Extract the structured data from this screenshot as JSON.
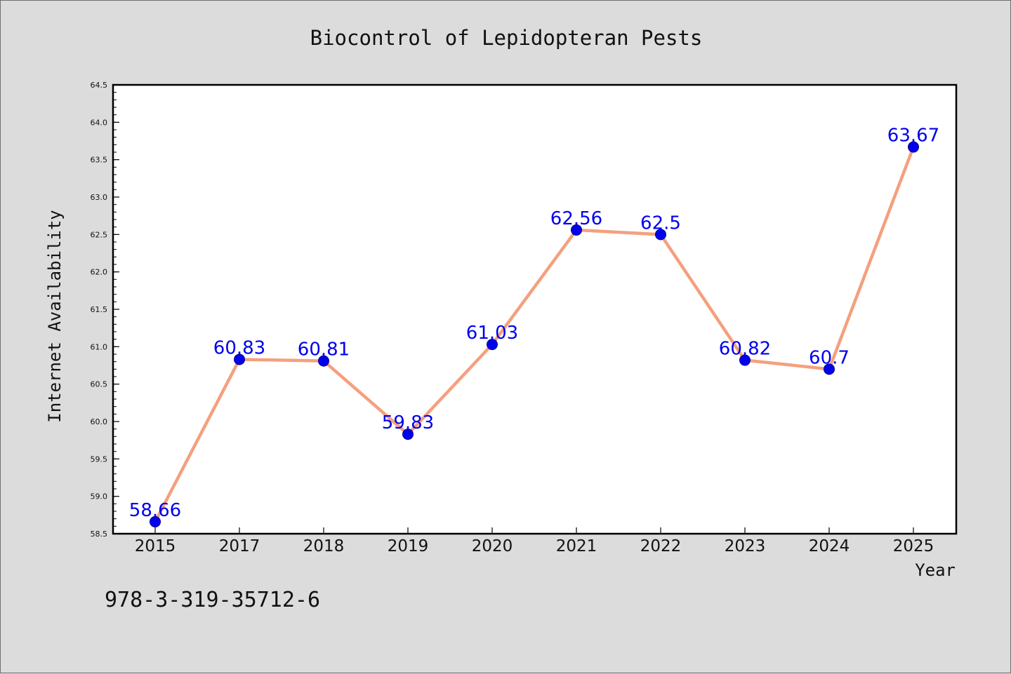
{
  "chart_data": {
    "type": "line",
    "title": "Biocontrol of Lepidopteran Pests",
    "xlabel": "Year",
    "ylabel": "Internet Availability",
    "categories": [
      "2015",
      "2017",
      "2018",
      "2019",
      "2020",
      "2021",
      "2022",
      "2023",
      "2024",
      "2025"
    ],
    "series": [
      {
        "values": [
          58.66,
          60.83,
          60.81,
          59.83,
          61.03,
          62.56,
          62.5,
          60.82,
          60.7,
          63.67
        ],
        "line_color": "#f4a07e",
        "marker_color": "#0000ee",
        "label_color": "#0000ee"
      }
    ],
    "ylim": [
      58.5,
      64.5
    ],
    "yticks": [
      "58.5",
      "59.0",
      "59.5",
      "60.0",
      "60.5",
      "61.0",
      "61.5",
      "62.0",
      "62.5",
      "63.0",
      "63.5",
      "64.0",
      "64.5"
    ],
    "grid": false,
    "legend": false
  },
  "footer": {
    "isbn": "978-3-319-35712-6"
  }
}
